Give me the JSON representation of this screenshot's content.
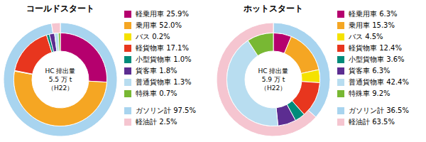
{
  "chart_data": [
    {
      "type": "donut",
      "title": "コールドスタート",
      "annotations": [
        "HC 排出量",
        "5.5 万 t",
        "（H22）"
      ],
      "series": [
        {
          "categories": [
            "軽乗用車 25.9%",
            "乗用車 52.0%",
            "バス 0.2%",
            "軽貨物車 17.1%",
            "小型貨物車 1.0%",
            "貨客車 1.8%",
            "普通貨物車 1.3%",
            "特殊車 0.7%"
          ],
          "values": [
            25.9,
            52.0,
            0.2,
            17.1,
            1.0,
            1.8,
            1.3,
            0.7
          ],
          "colors": [
            "#b5006e",
            "#f5a623",
            "#f5e200",
            "#e8361e",
            "#008b7a",
            "#5c2d91",
            "#b8ddf0",
            "#78b833"
          ]
        },
        {
          "categories": [
            "ガソリン計 97.5%",
            "軽油計 2.5%"
          ],
          "values": [
            97.5,
            2.5
          ],
          "colors": [
            "#a8d4ef",
            "#f5c5d0"
          ]
        }
      ]
    },
    {
      "type": "donut",
      "title": "ホットスタート",
      "annotations": [
        "HC 排出量",
        "5.9 万 t",
        "（H22）"
      ],
      "series": [
        {
          "categories": [
            "軽乗用車 6.3%",
            "乗用車 15.3%",
            "バス 4.5%",
            "軽貨物車 12.4%",
            "小型貨物車 3.6%",
            "貨客車 6.3%",
            "普通貨物車 42.4%",
            "特殊車 9.2%"
          ],
          "values": [
            6.3,
            15.3,
            4.5,
            12.4,
            3.6,
            6.3,
            42.4,
            9.2
          ],
          "colors": [
            "#b5006e",
            "#f5a623",
            "#f5e200",
            "#e8361e",
            "#008b7a",
            "#5c2d91",
            "#b8ddf0",
            "#78b833"
          ]
        },
        {
          "categories": [
            "ガソリン計 36.5%",
            "軽油計 63.5%"
          ],
          "values": [
            36.5,
            63.5
          ],
          "colors": [
            "#a8d4ef",
            "#f5c5d0"
          ]
        }
      ]
    }
  ]
}
